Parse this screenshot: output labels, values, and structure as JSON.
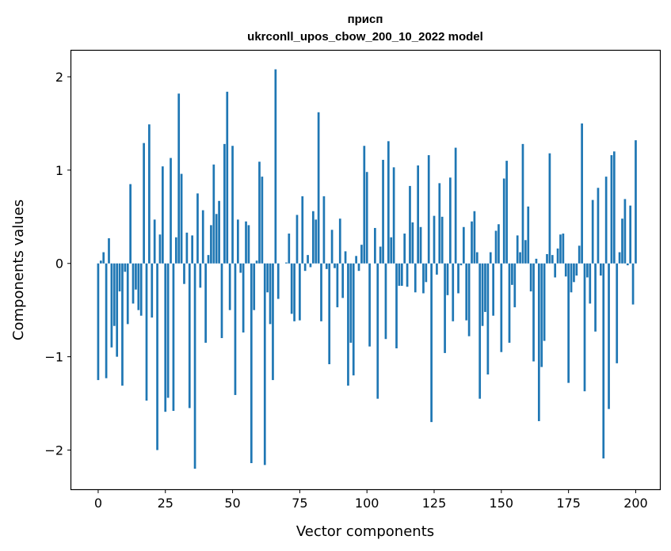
{
  "chart_data": {
    "type": "bar",
    "title_line1": "присп",
    "title_line2": "ukrconll_upos_cbow_200_10_2022 model",
    "xlabel": "Vector components",
    "ylabel": "Components values",
    "xlim": [
      -10,
      209
    ],
    "ylim": [
      -2.42,
      2.28
    ],
    "xticks": [
      0,
      25,
      50,
      75,
      100,
      125,
      150,
      175,
      200
    ],
    "xtick_labels": [
      "0",
      "25",
      "50",
      "75",
      "100",
      "125",
      "150",
      "175",
      "200"
    ],
    "yticks": [
      -2,
      -1,
      0,
      1,
      2
    ],
    "ytick_labels": [
      "−2",
      "−1",
      "0",
      "1",
      "2"
    ],
    "bar_color": "#1f77b4",
    "values": [
      -1.25,
      0.03,
      0.12,
      -1.23,
      0.27,
      -0.9,
      -0.67,
      -1.0,
      -0.3,
      -1.31,
      -0.09,
      -0.65,
      0.85,
      -0.43,
      -0.28,
      -0.5,
      -0.56,
      1.29,
      -1.47,
      1.49,
      -0.58,
      0.47,
      -2.0,
      0.31,
      1.04,
      -1.59,
      -1.44,
      1.13,
      -1.58,
      0.28,
      1.82,
      0.96,
      -0.22,
      0.33,
      -1.55,
      0.3,
      -2.2,
      0.75,
      -0.26,
      0.57,
      -0.85,
      0.09,
      0.41,
      1.06,
      0.53,
      0.67,
      -0.8,
      1.28,
      1.84,
      -0.5,
      1.26,
      -1.41,
      0.47,
      -0.1,
      -0.74,
      0.45,
      0.41,
      -2.14,
      -0.5,
      0.03,
      1.09,
      0.93,
      -2.16,
      -0.31,
      -0.65,
      -1.25,
      2.08,
      -0.38,
      0.0,
      0.0,
      0.01,
      0.32,
      -0.54,
      -0.62,
      0.52,
      -0.61,
      0.72,
      -0.08,
      0.09,
      -0.04,
      0.56,
      0.47,
      1.62,
      -0.62,
      0.72,
      -0.06,
      -1.08,
      0.36,
      -0.05,
      -0.47,
      0.48,
      -0.37,
      0.13,
      -1.31,
      -0.85,
      -1.2,
      0.08,
      -0.08,
      0.2,
      1.26,
      0.98,
      -0.89,
      0.0,
      0.38,
      -1.45,
      0.18,
      1.11,
      -0.81,
      1.31,
      0.28,
      1.03,
      -0.91,
      -0.24,
      -0.24,
      0.32,
      -0.25,
      0.83,
      0.44,
      -0.31,
      1.05,
      0.39,
      -0.32,
      -0.2,
      1.16,
      -1.7,
      0.51,
      -0.12,
      0.86,
      0.5,
      -0.96,
      -0.34,
      0.92,
      -0.62,
      1.24,
      -0.32,
      -0.02,
      0.39,
      -0.61,
      -0.78,
      0.45,
      0.56,
      0.12,
      -1.45,
      -0.67,
      -0.52,
      -1.19,
      0.12,
      -0.56,
      0.35,
      0.42,
      -0.95,
      0.91,
      1.1,
      -0.85,
      -0.23,
      -0.47,
      0.3,
      0.12,
      1.28,
      0.25,
      0.61,
      -0.3,
      -1.05,
      0.05,
      -1.69,
      -1.11,
      -0.83,
      0.1,
      1.18,
      0.09,
      -0.15,
      0.16,
      0.31,
      0.32,
      -0.14,
      -1.28,
      -0.31,
      -0.2,
      -0.13,
      0.19,
      1.5,
      -1.37,
      -0.15,
      -0.43,
      0.68,
      -0.73,
      0.81,
      -0.13,
      -2.09,
      0.93,
      -1.56,
      1.16,
      1.2,
      -1.07,
      0.12,
      0.48,
      0.69,
      -0.02,
      0.62,
      -0.44,
      1.32
    ]
  }
}
